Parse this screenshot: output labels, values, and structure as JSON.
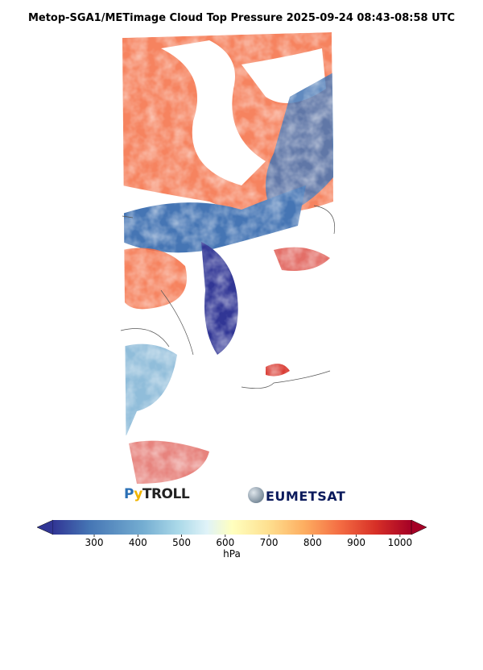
{
  "title": "Metop-SGA1/METimage Cloud Top Pressure 2025-09-24 08:43-08:58 UTC",
  "colorbar": {
    "label": "hPa",
    "colormap": "RdYlBu_r",
    "range": [
      206,
      1026
    ],
    "extend": "both",
    "ticks": [
      "300",
      "400",
      "500",
      "600",
      "700",
      "800",
      "900",
      "1000"
    ],
    "tick_values": [
      300,
      400,
      500,
      600,
      700,
      800,
      900,
      1000
    ],
    "colors": [
      "#313695",
      "#4575b4",
      "#74add1",
      "#abd9e9",
      "#e0f3f8",
      "#ffffbf",
      "#fee090",
      "#fdae61",
      "#f46d43",
      "#d73027",
      "#a50026"
    ]
  },
  "logos": {
    "pytroll": "PyTROLL",
    "eumetsat": "EUMETSAT"
  }
}
